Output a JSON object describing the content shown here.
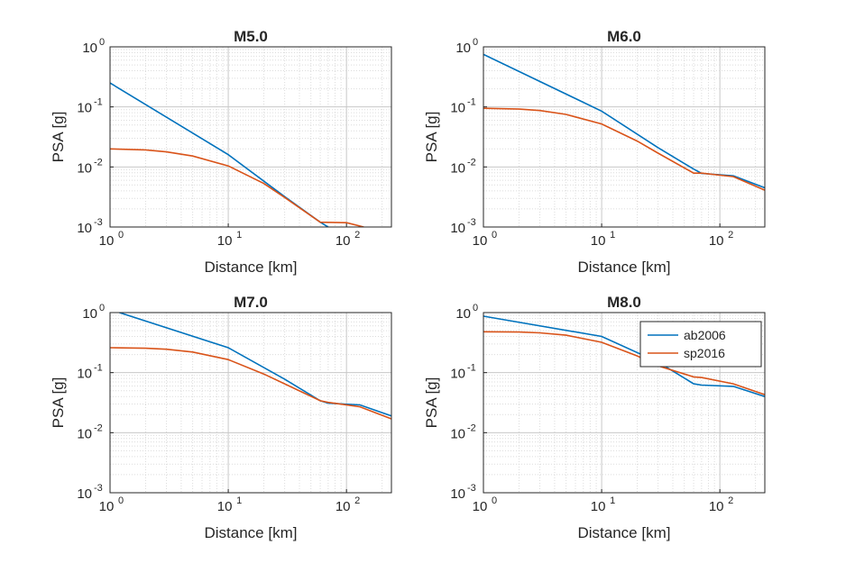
{
  "chart_data": [
    {
      "type": "line",
      "title": "M5.0",
      "xlabel": "Distance [km]",
      "ylabel": "PSA [g]",
      "xscale": "log",
      "yscale": "log",
      "xlim": [
        1,
        240
      ],
      "ylim": [
        0.001,
        1
      ],
      "grid": true,
      "x_ticks": [
        1,
        10,
        100
      ],
      "y_ticks": [
        0.001,
        0.01,
        0.1,
        1
      ],
      "series": [
        {
          "name": "ab2006",
          "color": "#0072BD",
          "x": [
            1,
            10,
            30,
            60,
            70
          ],
          "y": [
            0.25,
            0.016,
            0.0032,
            0.0012,
            0.001
          ]
        },
        {
          "name": "sp2016",
          "color": "#D95319",
          "x": [
            1,
            2,
            3,
            5,
            10,
            20,
            30,
            60,
            100,
            140
          ],
          "y": [
            0.02,
            0.0192,
            0.0178,
            0.0152,
            0.0104,
            0.0053,
            0.0031,
            0.0012,
            0.00118,
            0.001
          ]
        }
      ]
    },
    {
      "type": "line",
      "title": "M6.0",
      "xlabel": "Distance [km]",
      "ylabel": "PSA [g]",
      "xscale": "log",
      "yscale": "log",
      "xlim": [
        1,
        240
      ],
      "ylim": [
        0.001,
        1
      ],
      "grid": true,
      "x_ticks": [
        1,
        10,
        100
      ],
      "y_ticks": [
        0.001,
        0.01,
        0.1,
        1
      ],
      "series": [
        {
          "name": "ab2006",
          "color": "#0072BD",
          "x": [
            1,
            10,
            30,
            60,
            70,
            130,
            240
          ],
          "y": [
            0.75,
            0.085,
            0.021,
            0.0092,
            0.0078,
            0.0071,
            0.0045
          ]
        },
        {
          "name": "sp2016",
          "color": "#D95319",
          "x": [
            1,
            2,
            3,
            5,
            10,
            20,
            30,
            60,
            70,
            130,
            240
          ],
          "y": [
            0.095,
            0.092,
            0.087,
            0.075,
            0.052,
            0.027,
            0.017,
            0.0079,
            0.0079,
            0.0069,
            0.0041
          ]
        }
      ]
    },
    {
      "type": "line",
      "title": "M7.0",
      "xlabel": "Distance [km]",
      "ylabel": "PSA [g]",
      "xscale": "log",
      "yscale": "log",
      "xlim": [
        1,
        240
      ],
      "ylim": [
        0.001,
        1
      ],
      "grid": true,
      "x_ticks": [
        1,
        10,
        100
      ],
      "y_ticks": [
        0.001,
        0.01,
        0.1,
        1
      ],
      "series": [
        {
          "name": "ab2006",
          "color": "#0072BD",
          "x": [
            1.2,
            10,
            30,
            60,
            70,
            130,
            240
          ],
          "y": [
            1.0,
            0.26,
            0.078,
            0.034,
            0.031,
            0.029,
            0.019
          ]
        },
        {
          "name": "sp2016",
          "color": "#D95319",
          "x": [
            1,
            2,
            3,
            5,
            10,
            20,
            30,
            60,
            70,
            130,
            240
          ],
          "y": [
            0.26,
            0.255,
            0.245,
            0.22,
            0.165,
            0.095,
            0.065,
            0.034,
            0.032,
            0.027,
            0.017
          ]
        }
      ]
    },
    {
      "type": "line",
      "title": "M8.0",
      "xlabel": "Distance [km]",
      "ylabel": "PSA [g]",
      "xscale": "log",
      "yscale": "log",
      "xlim": [
        1,
        240
      ],
      "ylim": [
        0.001,
        1
      ],
      "grid": true,
      "x_ticks": [
        1,
        10,
        100
      ],
      "y_ticks": [
        0.001,
        0.01,
        0.1,
        1
      ],
      "legend": {
        "placement": "top-right",
        "entries": [
          "ab2006",
          "sp2016"
        ]
      },
      "series": [
        {
          "name": "ab2006",
          "color": "#0072BD",
          "x": [
            1,
            10,
            30,
            60,
            70,
            130,
            240
          ],
          "y": [
            0.87,
            0.4,
            0.15,
            0.065,
            0.062,
            0.059,
            0.04
          ]
        },
        {
          "name": "sp2016",
          "color": "#D95319",
          "x": [
            1,
            2,
            3,
            5,
            10,
            20,
            30,
            60,
            70,
            130,
            240
          ],
          "y": [
            0.48,
            0.475,
            0.46,
            0.42,
            0.32,
            0.19,
            0.13,
            0.085,
            0.083,
            0.065,
            0.043
          ]
        }
      ]
    }
  ]
}
